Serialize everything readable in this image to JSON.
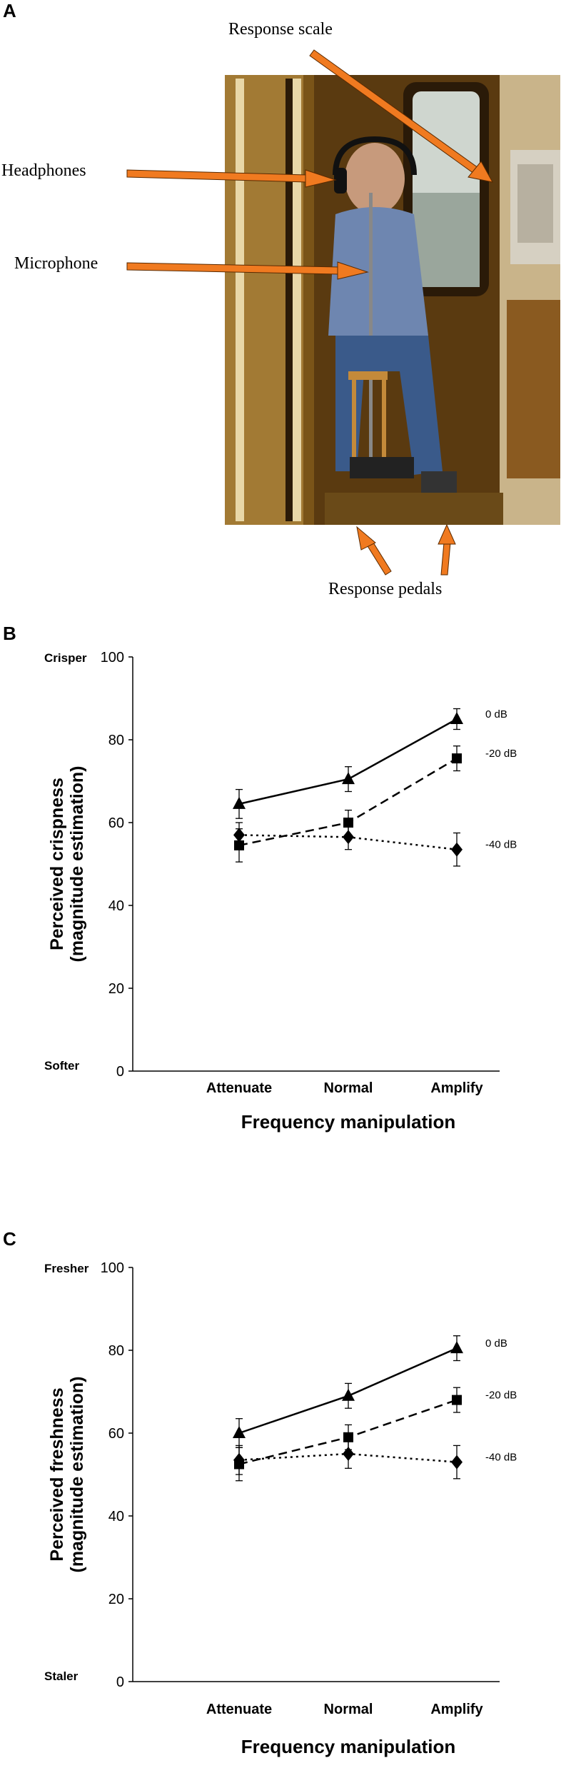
{
  "panels": {
    "a": "A",
    "b": "B",
    "c": "C"
  },
  "photo": {
    "labels": {
      "response_scale": "Response scale",
      "headphones": "Headphones",
      "microphone": "Microphone",
      "response_pedals": "Response pedals"
    },
    "colors": {
      "arrow": "#f07a20",
      "wood": "#8a6220",
      "booth_dark": "#2a1a08"
    }
  },
  "chart_data": [
    {
      "type": "line",
      "ylabel": "Perceived crispness",
      "ylabel2": "(magnitude estimation)",
      "xlabel": "Frequency manipulation",
      "categories": [
        "Attenuate",
        "Normal",
        "Amplify"
      ],
      "ylim": [
        0,
        100
      ],
      "yticks": [
        0,
        20,
        40,
        60,
        80,
        100
      ],
      "anchor_top": "Crisper",
      "anchor_bottom": "Softer",
      "grid": false,
      "series": [
        {
          "name": "0 dB",
          "values": [
            64.5,
            70.5,
            85
          ],
          "errors": [
            3.5,
            3,
            2.5
          ],
          "marker": "triangle",
          "dash": "solid"
        },
        {
          "name": "-20 dB",
          "values": [
            54.5,
            60,
            75.5
          ],
          "errors": [
            4,
            3,
            3
          ],
          "marker": "square",
          "dash": "dashed"
        },
        {
          "name": "-40 dB",
          "values": [
            57,
            56.5,
            53.5
          ],
          "errors": [
            3,
            3,
            4
          ],
          "marker": "diamond",
          "dash": "dotted"
        }
      ]
    },
    {
      "type": "line",
      "ylabel": "Perceived freshness",
      "ylabel2": "(magnitude estimation)",
      "xlabel": "Frequency manipulation",
      "categories": [
        "Attenuate",
        "Normal",
        "Amplify"
      ],
      "ylim": [
        0,
        100
      ],
      "yticks": [
        0,
        20,
        40,
        60,
        80,
        100
      ],
      "anchor_top": "Fresher",
      "anchor_bottom": "Staler",
      "grid": false,
      "series": [
        {
          "name": "0 dB",
          "values": [
            60,
            69,
            80.5
          ],
          "errors": [
            3.5,
            3,
            3
          ],
          "marker": "triangle",
          "dash": "solid"
        },
        {
          "name": "-20 dB",
          "values": [
            52.5,
            59,
            68
          ],
          "errors": [
            4,
            3,
            3
          ],
          "marker": "square",
          "dash": "dashed"
        },
        {
          "name": "-40 dB",
          "values": [
            53.5,
            55,
            53
          ],
          "errors": [
            3.5,
            3.5,
            4
          ],
          "marker": "diamond",
          "dash": "dotted"
        }
      ]
    }
  ]
}
